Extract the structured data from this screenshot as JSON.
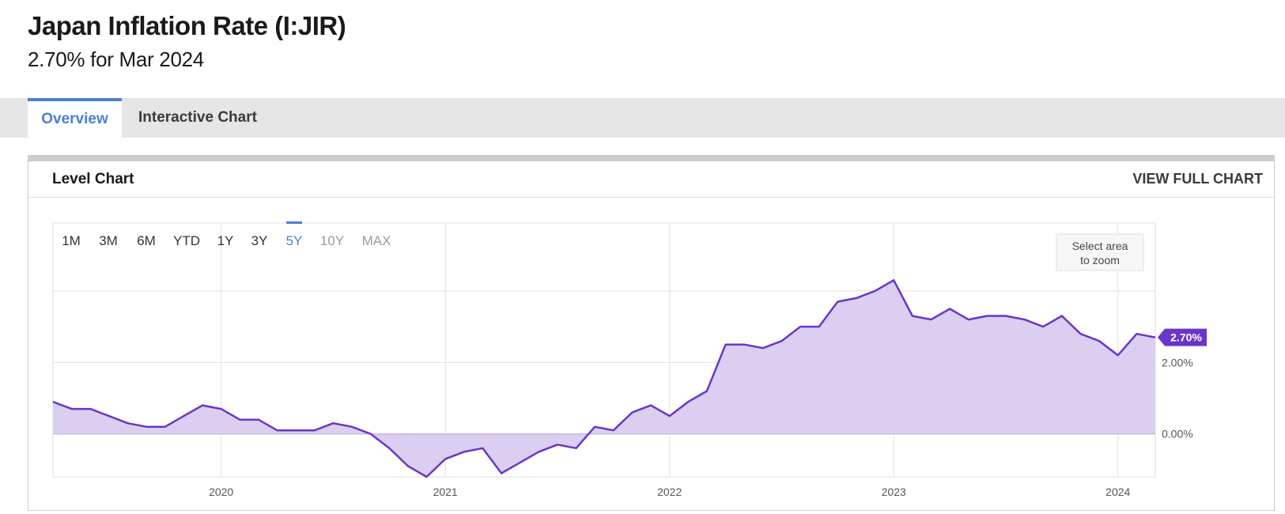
{
  "page": {
    "title": "Japan Inflation Rate (I:JIR)",
    "subtitle": "2.70% for Mar 2024"
  },
  "tabs": [
    {
      "label": "Overview",
      "active": true
    },
    {
      "label": "Interactive Chart",
      "active": false
    }
  ],
  "card": {
    "title": "Level Chart",
    "link": "VIEW FULL CHART"
  },
  "range_buttons": [
    {
      "label": "1M",
      "state": "normal"
    },
    {
      "label": "3M",
      "state": "normal"
    },
    {
      "label": "6M",
      "state": "normal"
    },
    {
      "label": "YTD",
      "state": "normal"
    },
    {
      "label": "1Y",
      "state": "normal"
    },
    {
      "label": "3Y",
      "state": "normal"
    },
    {
      "label": "5Y",
      "state": "active"
    },
    {
      "label": "10Y",
      "state": "disabled"
    },
    {
      "label": "MAX",
      "state": "disabled"
    }
  ],
  "zoom_hint": [
    "Select area",
    "to zoom"
  ],
  "colors": {
    "accent": "#4a7fd8",
    "line": "#6a35c8",
    "fill": "#d8ccf0",
    "label_bg": "#6a35c8"
  },
  "chart_data": {
    "type": "area",
    "ylim": [
      -1.2,
      5.9
    ],
    "ytick_values": [
      0,
      2
    ],
    "ytick_labels": [
      "0.00%",
      "2.00%"
    ],
    "xtick_labels": [
      {
        "label": "2020",
        "x": "2020-01"
      },
      {
        "label": "2021",
        "x": "2021-01"
      },
      {
        "label": "2022",
        "x": "2022-01"
      },
      {
        "label": "2023",
        "x": "2023-01"
      },
      {
        "label": "2024",
        "x": "2024-01"
      }
    ],
    "last_value_label": "2.70%",
    "grid": true,
    "series": [
      {
        "values": [
          {
            "x": "2019-04",
            "y": 0.9
          },
          {
            "x": "2019-05",
            "y": 0.7
          },
          {
            "x": "2019-06",
            "y": 0.7
          },
          {
            "x": "2019-07",
            "y": 0.5
          },
          {
            "x": "2019-08",
            "y": 0.3
          },
          {
            "x": "2019-09",
            "y": 0.2
          },
          {
            "x": "2019-10",
            "y": 0.2
          },
          {
            "x": "2019-11",
            "y": 0.5
          },
          {
            "x": "2019-12",
            "y": 0.8
          },
          {
            "x": "2020-01",
            "y": 0.7
          },
          {
            "x": "2020-02",
            "y": 0.4
          },
          {
            "x": "2020-03",
            "y": 0.4
          },
          {
            "x": "2020-04",
            "y": 0.1
          },
          {
            "x": "2020-05",
            "y": 0.1
          },
          {
            "x": "2020-06",
            "y": 0.1
          },
          {
            "x": "2020-07",
            "y": 0.3
          },
          {
            "x": "2020-08",
            "y": 0.2
          },
          {
            "x": "2020-09",
            "y": 0.0
          },
          {
            "x": "2020-10",
            "y": -0.4
          },
          {
            "x": "2020-11",
            "y": -0.9
          },
          {
            "x": "2020-12",
            "y": -1.2
          },
          {
            "x": "2021-01",
            "y": -0.7
          },
          {
            "x": "2021-02",
            "y": -0.5
          },
          {
            "x": "2021-03",
            "y": -0.4
          },
          {
            "x": "2021-04",
            "y": -1.1
          },
          {
            "x": "2021-05",
            "y": -0.8
          },
          {
            "x": "2021-06",
            "y": -0.5
          },
          {
            "x": "2021-07",
            "y": -0.3
          },
          {
            "x": "2021-08",
            "y": -0.4
          },
          {
            "x": "2021-09",
            "y": 0.2
          },
          {
            "x": "2021-10",
            "y": 0.1
          },
          {
            "x": "2021-11",
            "y": 0.6
          },
          {
            "x": "2021-12",
            "y": 0.8
          },
          {
            "x": "2022-01",
            "y": 0.5
          },
          {
            "x": "2022-02",
            "y": 0.9
          },
          {
            "x": "2022-03",
            "y": 1.2
          },
          {
            "x": "2022-04",
            "y": 2.5
          },
          {
            "x": "2022-05",
            "y": 2.5
          },
          {
            "x": "2022-06",
            "y": 2.4
          },
          {
            "x": "2022-07",
            "y": 2.6
          },
          {
            "x": "2022-08",
            "y": 3.0
          },
          {
            "x": "2022-09",
            "y": 3.0
          },
          {
            "x": "2022-10",
            "y": 3.7
          },
          {
            "x": "2022-11",
            "y": 3.8
          },
          {
            "x": "2022-12",
            "y": 4.0
          },
          {
            "x": "2023-01",
            "y": 4.3
          },
          {
            "x": "2023-02",
            "y": 3.3
          },
          {
            "x": "2023-03",
            "y": 3.2
          },
          {
            "x": "2023-04",
            "y": 3.5
          },
          {
            "x": "2023-05",
            "y": 3.2
          },
          {
            "x": "2023-06",
            "y": 3.3
          },
          {
            "x": "2023-07",
            "y": 3.3
          },
          {
            "x": "2023-08",
            "y": 3.2
          },
          {
            "x": "2023-09",
            "y": 3.0
          },
          {
            "x": "2023-10",
            "y": 3.3
          },
          {
            "x": "2023-11",
            "y": 2.8
          },
          {
            "x": "2023-12",
            "y": 2.6
          },
          {
            "x": "2024-01",
            "y": 2.2
          },
          {
            "x": "2024-02",
            "y": 2.8
          },
          {
            "x": "2024-03",
            "y": 2.7
          }
        ]
      }
    ]
  }
}
